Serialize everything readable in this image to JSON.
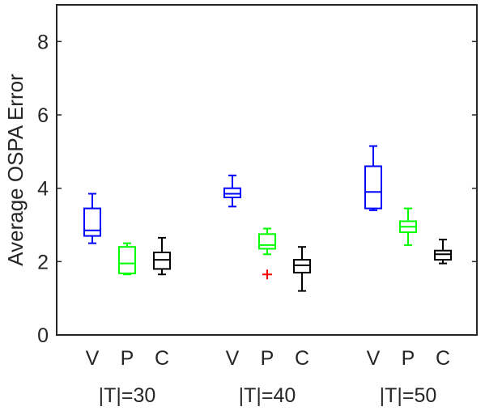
{
  "chart_data": {
    "type": "box",
    "ylabel": "Average OSPA Error",
    "ylim": [
      0,
      9
    ],
    "yticks": [
      0,
      2,
      4,
      6,
      8
    ],
    "grid": false,
    "groups": [
      {
        "label": "|T|=30",
        "boxes": [
          {
            "category": "V",
            "color": "#0000ff",
            "whisker_low": 2.5,
            "q1": 2.7,
            "median": 2.85,
            "q3": 3.45,
            "whisker_high": 3.85,
            "outliers": []
          },
          {
            "category": "P",
            "color": "#00ff00",
            "whisker_low": 1.65,
            "q1": 1.68,
            "median": 1.95,
            "q3": 2.4,
            "whisker_high": 2.5,
            "outliers": []
          },
          {
            "category": "C",
            "color": "#000000",
            "whisker_low": 1.65,
            "q1": 1.8,
            "median": 2.05,
            "q3": 2.25,
            "whisker_high": 2.65,
            "outliers": []
          }
        ]
      },
      {
        "label": "|T|=40",
        "boxes": [
          {
            "category": "V",
            "color": "#0000ff",
            "whisker_low": 3.5,
            "q1": 3.75,
            "median": 3.85,
            "q3": 4.0,
            "whisker_high": 4.35,
            "outliers": []
          },
          {
            "category": "P",
            "color": "#00ff00",
            "whisker_low": 2.2,
            "q1": 2.35,
            "median": 2.45,
            "q3": 2.75,
            "whisker_high": 2.9,
            "outliers": [
              1.65
            ]
          },
          {
            "category": "C",
            "color": "#000000",
            "whisker_low": 1.2,
            "q1": 1.7,
            "median": 1.9,
            "q3": 2.05,
            "whisker_high": 2.4,
            "outliers": []
          }
        ]
      },
      {
        "label": "|T|=50",
        "boxes": [
          {
            "category": "V",
            "color": "#0000ff",
            "whisker_low": 3.4,
            "q1": 3.45,
            "median": 3.9,
            "q3": 4.6,
            "whisker_high": 5.15,
            "outliers": []
          },
          {
            "category": "P",
            "color": "#00ff00",
            "whisker_low": 2.45,
            "q1": 2.8,
            "median": 2.95,
            "q3": 3.1,
            "whisker_high": 3.45,
            "outliers": []
          },
          {
            "category": "C",
            "color": "#000000",
            "whisker_low": 1.95,
            "q1": 2.05,
            "median": 2.2,
            "q3": 2.3,
            "whisker_high": 2.6,
            "outliers": []
          }
        ]
      }
    ],
    "outlier_color": "#ff0000",
    "outlier_marker": "+"
  }
}
